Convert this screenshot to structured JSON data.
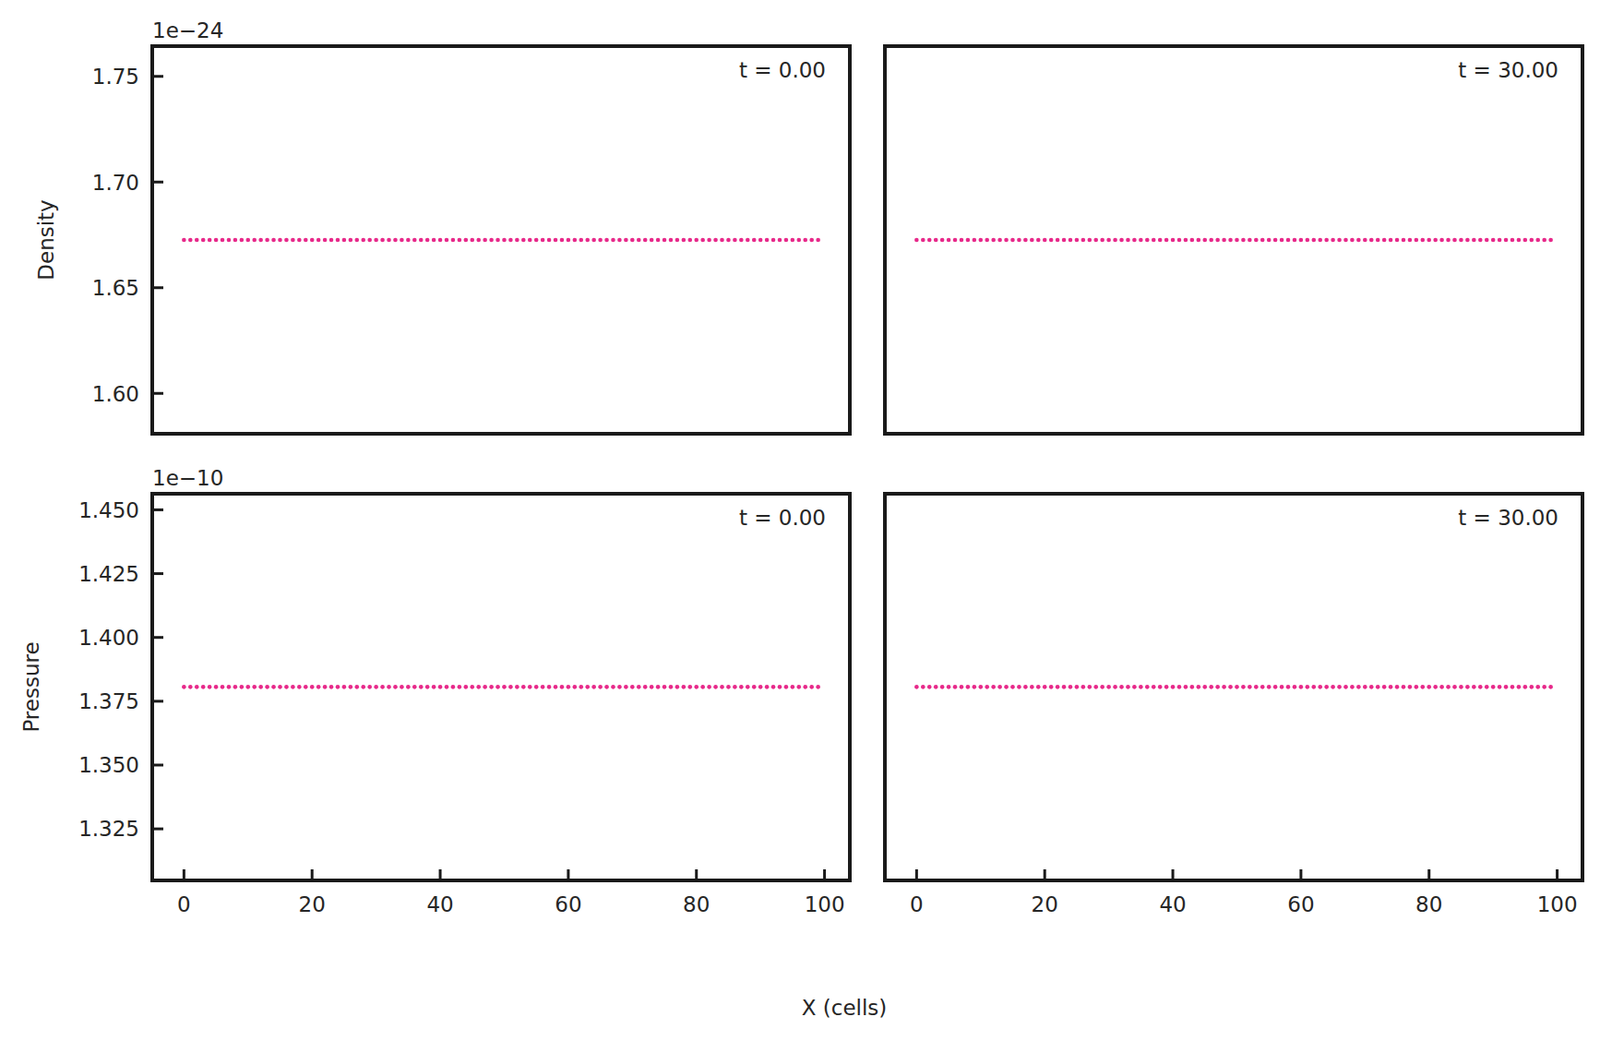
{
  "chart_data": [
    {
      "type": "scatter",
      "ylabel": "Density",
      "offset_text": "1e−24",
      "annotation": "t = 0.00",
      "color": "#e7298a",
      "marker": "circle",
      "tick_labels": "y",
      "xlim": [
        -4.95,
        103.95
      ],
      "ylim": [
        1.5809e-24,
        1.7643e-24
      ],
      "yticks": [
        {
          "value": 1.6e-24,
          "label": "1.60"
        },
        {
          "value": 1.65e-24,
          "label": "1.65"
        },
        {
          "value": 1.7e-24,
          "label": "1.70"
        },
        {
          "value": 1.75e-24,
          "label": "1.75"
        }
      ],
      "x": [
        0,
        1,
        2,
        3,
        4,
        5,
        6,
        7,
        8,
        9,
        10,
        11,
        12,
        13,
        14,
        15,
        16,
        17,
        18,
        19,
        20,
        21,
        22,
        23,
        24,
        25,
        26,
        27,
        28,
        29,
        30,
        31,
        32,
        33,
        34,
        35,
        36,
        37,
        38,
        39,
        40,
        41,
        42,
        43,
        44,
        45,
        46,
        47,
        48,
        49,
        50,
        51,
        52,
        53,
        54,
        55,
        56,
        57,
        58,
        59,
        60,
        61,
        62,
        63,
        64,
        65,
        66,
        67,
        68,
        69,
        70,
        71,
        72,
        73,
        74,
        75,
        76,
        77,
        78,
        79,
        80,
        81,
        82,
        83,
        84,
        85,
        86,
        87,
        88,
        89,
        90,
        91,
        92,
        93,
        94,
        95,
        96,
        97,
        98,
        99
      ],
      "values": [
        1.6726e-24,
        1.6726e-24,
        1.6726e-24,
        1.6726e-24,
        1.6726e-24,
        1.6726e-24,
        1.6726e-24,
        1.6726e-24,
        1.6726e-24,
        1.6726e-24,
        1.6726e-24,
        1.6726e-24,
        1.6726e-24,
        1.6726e-24,
        1.6726e-24,
        1.6726e-24,
        1.6726e-24,
        1.6726e-24,
        1.6726e-24,
        1.6726e-24,
        1.6726e-24,
        1.6726e-24,
        1.6726e-24,
        1.6726e-24,
        1.6726e-24,
        1.6726e-24,
        1.6726e-24,
        1.6726e-24,
        1.6726e-24,
        1.6726e-24,
        1.6726e-24,
        1.6726e-24,
        1.6726e-24,
        1.6726e-24,
        1.6726e-24,
        1.6726e-24,
        1.6726e-24,
        1.6726e-24,
        1.6726e-24,
        1.6726e-24,
        1.6726e-24,
        1.6726e-24,
        1.6726e-24,
        1.6726e-24,
        1.6726e-24,
        1.6726e-24,
        1.6726e-24,
        1.6726e-24,
        1.6726e-24,
        1.6726e-24,
        1.6726e-24,
        1.6726e-24,
        1.6726e-24,
        1.6726e-24,
        1.6726e-24,
        1.6726e-24,
        1.6726e-24,
        1.6726e-24,
        1.6726e-24,
        1.6726e-24,
        1.6726e-24,
        1.6726e-24,
        1.6726e-24,
        1.6726e-24,
        1.6726e-24,
        1.6726e-24,
        1.6726e-24,
        1.6726e-24,
        1.6726e-24,
        1.6726e-24,
        1.6726e-24,
        1.6726e-24,
        1.6726e-24,
        1.6726e-24,
        1.6726e-24,
        1.6726e-24,
        1.6726e-24,
        1.6726e-24,
        1.6726e-24,
        1.6726e-24,
        1.6726e-24,
        1.6726e-24,
        1.6726e-24,
        1.6726e-24,
        1.6726e-24,
        1.6726e-24,
        1.6726e-24,
        1.6726e-24,
        1.6726e-24,
        1.6726e-24,
        1.6726e-24,
        1.6726e-24,
        1.6726e-24,
        1.6726e-24,
        1.6726e-24,
        1.6726e-24,
        1.6726e-24,
        1.6726e-24,
        1.6726e-24,
        1.6726e-24
      ]
    },
    {
      "type": "scatter",
      "annotation": "t = 30.00",
      "color": "#e7298a",
      "marker": "circle",
      "tick_labels": false,
      "xlim": [
        -4.95,
        103.95
      ],
      "ylim": [
        1.5809e-24,
        1.7643e-24
      ],
      "x": [
        0,
        1,
        2,
        3,
        4,
        5,
        6,
        7,
        8,
        9,
        10,
        11,
        12,
        13,
        14,
        15,
        16,
        17,
        18,
        19,
        20,
        21,
        22,
        23,
        24,
        25,
        26,
        27,
        28,
        29,
        30,
        31,
        32,
        33,
        34,
        35,
        36,
        37,
        38,
        39,
        40,
        41,
        42,
        43,
        44,
        45,
        46,
        47,
        48,
        49,
        50,
        51,
        52,
        53,
        54,
        55,
        56,
        57,
        58,
        59,
        60,
        61,
        62,
        63,
        64,
        65,
        66,
        67,
        68,
        69,
        70,
        71,
        72,
        73,
        74,
        75,
        76,
        77,
        78,
        79,
        80,
        81,
        82,
        83,
        84,
        85,
        86,
        87,
        88,
        89,
        90,
        91,
        92,
        93,
        94,
        95,
        96,
        97,
        98,
        99
      ],
      "values": [
        1.6726e-24,
        1.6726e-24,
        1.6726e-24,
        1.6726e-24,
        1.6726e-24,
        1.6726e-24,
        1.6726e-24,
        1.6726e-24,
        1.6726e-24,
        1.6726e-24,
        1.6726e-24,
        1.6726e-24,
        1.6726e-24,
        1.6726e-24,
        1.6726e-24,
        1.6726e-24,
        1.6726e-24,
        1.6726e-24,
        1.6726e-24,
        1.6726e-24,
        1.6726e-24,
        1.6726e-24,
        1.6726e-24,
        1.6726e-24,
        1.6726e-24,
        1.6726e-24,
        1.6726e-24,
        1.6726e-24,
        1.6726e-24,
        1.6726e-24,
        1.6726e-24,
        1.6726e-24,
        1.6726e-24,
        1.6726e-24,
        1.6726e-24,
        1.6726e-24,
        1.6726e-24,
        1.6726e-24,
        1.6726e-24,
        1.6726e-24,
        1.6726e-24,
        1.6726e-24,
        1.6726e-24,
        1.6726e-24,
        1.6726e-24,
        1.6726e-24,
        1.6726e-24,
        1.6726e-24,
        1.6726e-24,
        1.6726e-24,
        1.6726e-24,
        1.6726e-24,
        1.6726e-24,
        1.6726e-24,
        1.6726e-24,
        1.6726e-24,
        1.6726e-24,
        1.6726e-24,
        1.6726e-24,
        1.6726e-24,
        1.6726e-24,
        1.6726e-24,
        1.6726e-24,
        1.6726e-24,
        1.6726e-24,
        1.6726e-24,
        1.6726e-24,
        1.6726e-24,
        1.6726e-24,
        1.6726e-24,
        1.6726e-24,
        1.6726e-24,
        1.6726e-24,
        1.6726e-24,
        1.6726e-24,
        1.6726e-24,
        1.6726e-24,
        1.6726e-24,
        1.6726e-24,
        1.6726e-24,
        1.6726e-24,
        1.6726e-24,
        1.6726e-24,
        1.6726e-24,
        1.6726e-24,
        1.6726e-24,
        1.6726e-24,
        1.6726e-24,
        1.6726e-24,
        1.6726e-24,
        1.6726e-24,
        1.6726e-24,
        1.6726e-24,
        1.6726e-24,
        1.6726e-24,
        1.6726e-24,
        1.6726e-24,
        1.6726e-24,
        1.6726e-24,
        1.6726e-24
      ]
    },
    {
      "type": "scatter",
      "ylabel": "Pressure",
      "offset_text": "1e−10",
      "annotation": "t = 0.00",
      "color": "#e7298a",
      "marker": "circle",
      "tick_labels": true,
      "xlim": [
        -4.95,
        103.95
      ],
      "ylim": [
        1.3048e-10,
        1.4563e-10
      ],
      "xticks": [
        0,
        20,
        40,
        60,
        80,
        100
      ],
      "yticks": [
        {
          "value": 1.325e-10,
          "label": "1.325"
        },
        {
          "value": 1.35e-10,
          "label": "1.350"
        },
        {
          "value": 1.375e-10,
          "label": "1.375"
        },
        {
          "value": 1.4e-10,
          "label": "1.400"
        },
        {
          "value": 1.425e-10,
          "label": "1.425"
        },
        {
          "value": 1.45e-10,
          "label": "1.450"
        }
      ],
      "x": [
        0,
        1,
        2,
        3,
        4,
        5,
        6,
        7,
        8,
        9,
        10,
        11,
        12,
        13,
        14,
        15,
        16,
        17,
        18,
        19,
        20,
        21,
        22,
        23,
        24,
        25,
        26,
        27,
        28,
        29,
        30,
        31,
        32,
        33,
        34,
        35,
        36,
        37,
        38,
        39,
        40,
        41,
        42,
        43,
        44,
        45,
        46,
        47,
        48,
        49,
        50,
        51,
        52,
        53,
        54,
        55,
        56,
        57,
        58,
        59,
        60,
        61,
        62,
        63,
        64,
        65,
        66,
        67,
        68,
        69,
        70,
        71,
        72,
        73,
        74,
        75,
        76,
        77,
        78,
        79,
        80,
        81,
        82,
        83,
        84,
        85,
        86,
        87,
        88,
        89,
        90,
        91,
        92,
        93,
        94,
        95,
        96,
        97,
        98,
        99
      ],
      "values": [
        1.3806e-10,
        1.3806e-10,
        1.3806e-10,
        1.3806e-10,
        1.3806e-10,
        1.3806e-10,
        1.3806e-10,
        1.3806e-10,
        1.3806e-10,
        1.3806e-10,
        1.3806e-10,
        1.3806e-10,
        1.3806e-10,
        1.3806e-10,
        1.3806e-10,
        1.3806e-10,
        1.3806e-10,
        1.3806e-10,
        1.3806e-10,
        1.3806e-10,
        1.3806e-10,
        1.3806e-10,
        1.3806e-10,
        1.3806e-10,
        1.3806e-10,
        1.3806e-10,
        1.3806e-10,
        1.3806e-10,
        1.3806e-10,
        1.3806e-10,
        1.3806e-10,
        1.3806e-10,
        1.3806e-10,
        1.3806e-10,
        1.3806e-10,
        1.3806e-10,
        1.3806e-10,
        1.3806e-10,
        1.3806e-10,
        1.3806e-10,
        1.3806e-10,
        1.3806e-10,
        1.3806e-10,
        1.3806e-10,
        1.3806e-10,
        1.3806e-10,
        1.3806e-10,
        1.3806e-10,
        1.3806e-10,
        1.3806e-10,
        1.3806e-10,
        1.3806e-10,
        1.3806e-10,
        1.3806e-10,
        1.3806e-10,
        1.3806e-10,
        1.3806e-10,
        1.3806e-10,
        1.3806e-10,
        1.3806e-10,
        1.3806e-10,
        1.3806e-10,
        1.3806e-10,
        1.3806e-10,
        1.3806e-10,
        1.3806e-10,
        1.3806e-10,
        1.3806e-10,
        1.3806e-10,
        1.3806e-10,
        1.3806e-10,
        1.3806e-10,
        1.3806e-10,
        1.3806e-10,
        1.3806e-10,
        1.3806e-10,
        1.3806e-10,
        1.3806e-10,
        1.3806e-10,
        1.3806e-10,
        1.3806e-10,
        1.3806e-10,
        1.3806e-10,
        1.3806e-10,
        1.3806e-10,
        1.3806e-10,
        1.3806e-10,
        1.3806e-10,
        1.3806e-10,
        1.3806e-10,
        1.3806e-10,
        1.3806e-10,
        1.3806e-10,
        1.3806e-10,
        1.3806e-10,
        1.3806e-10,
        1.3806e-10,
        1.3806e-10,
        1.3806e-10,
        1.3806e-10
      ]
    },
    {
      "type": "scatter",
      "annotation": "t = 30.00",
      "color": "#e7298a",
      "marker": "circle",
      "tick_labels": "x",
      "xlim": [
        -4.95,
        103.95
      ],
      "ylim": [
        1.3048e-10,
        1.4563e-10
      ],
      "xticks": [
        0,
        20,
        40,
        60,
        80,
        100
      ],
      "x": [
        0,
        1,
        2,
        3,
        4,
        5,
        6,
        7,
        8,
        9,
        10,
        11,
        12,
        13,
        14,
        15,
        16,
        17,
        18,
        19,
        20,
        21,
        22,
        23,
        24,
        25,
        26,
        27,
        28,
        29,
        30,
        31,
        32,
        33,
        34,
        35,
        36,
        37,
        38,
        39,
        40,
        41,
        42,
        43,
        44,
        45,
        46,
        47,
        48,
        49,
        50,
        51,
        52,
        53,
        54,
        55,
        56,
        57,
        58,
        59,
        60,
        61,
        62,
        63,
        64,
        65,
        66,
        67,
        68,
        69,
        70,
        71,
        72,
        73,
        74,
        75,
        76,
        77,
        78,
        79,
        80,
        81,
        82,
        83,
        84,
        85,
        86,
        87,
        88,
        89,
        90,
        91,
        92,
        93,
        94,
        95,
        96,
        97,
        98,
        99
      ],
      "values": [
        1.3806e-10,
        1.3806e-10,
        1.3806e-10,
        1.3806e-10,
        1.3806e-10,
        1.3806e-10,
        1.3806e-10,
        1.3806e-10,
        1.3806e-10,
        1.3806e-10,
        1.3806e-10,
        1.3806e-10,
        1.3806e-10,
        1.3806e-10,
        1.3806e-10,
        1.3806e-10,
        1.3806e-10,
        1.3806e-10,
        1.3806e-10,
        1.3806e-10,
        1.3806e-10,
        1.3806e-10,
        1.3806e-10,
        1.3806e-10,
        1.3806e-10,
        1.3806e-10,
        1.3806e-10,
        1.3806e-10,
        1.3806e-10,
        1.3806e-10,
        1.3806e-10,
        1.3806e-10,
        1.3806e-10,
        1.3806e-10,
        1.3806e-10,
        1.3806e-10,
        1.3806e-10,
        1.3806e-10,
        1.3806e-10,
        1.3806e-10,
        1.3806e-10,
        1.3806e-10,
        1.3806e-10,
        1.3806e-10,
        1.3806e-10,
        1.3806e-10,
        1.3806e-10,
        1.3806e-10,
        1.3806e-10,
        1.3806e-10,
        1.3806e-10,
        1.3806e-10,
        1.3806e-10,
        1.3806e-10,
        1.3806e-10,
        1.3806e-10,
        1.3806e-10,
        1.3806e-10,
        1.3806e-10,
        1.3806e-10,
        1.3806e-10,
        1.3806e-10,
        1.3806e-10,
        1.3806e-10,
        1.3806e-10,
        1.3806e-10,
        1.3806e-10,
        1.3806e-10,
        1.3806e-10,
        1.3806e-10,
        1.3806e-10,
        1.3806e-10,
        1.3806e-10,
        1.3806e-10,
        1.3806e-10,
        1.3806e-10,
        1.3806e-10,
        1.3806e-10,
        1.3806e-10,
        1.3806e-10,
        1.3806e-10,
        1.3806e-10,
        1.3806e-10,
        1.3806e-10,
        1.3806e-10,
        1.3806e-10,
        1.3806e-10,
        1.3806e-10,
        1.3806e-10,
        1.3806e-10,
        1.3806e-10,
        1.3806e-10,
        1.3806e-10,
        1.3806e-10,
        1.3806e-10,
        1.3806e-10,
        1.3806e-10,
        1.3806e-10,
        1.3806e-10,
        1.3806e-10
      ]
    }
  ],
  "figure": {
    "xlabel": "X (cells)"
  }
}
